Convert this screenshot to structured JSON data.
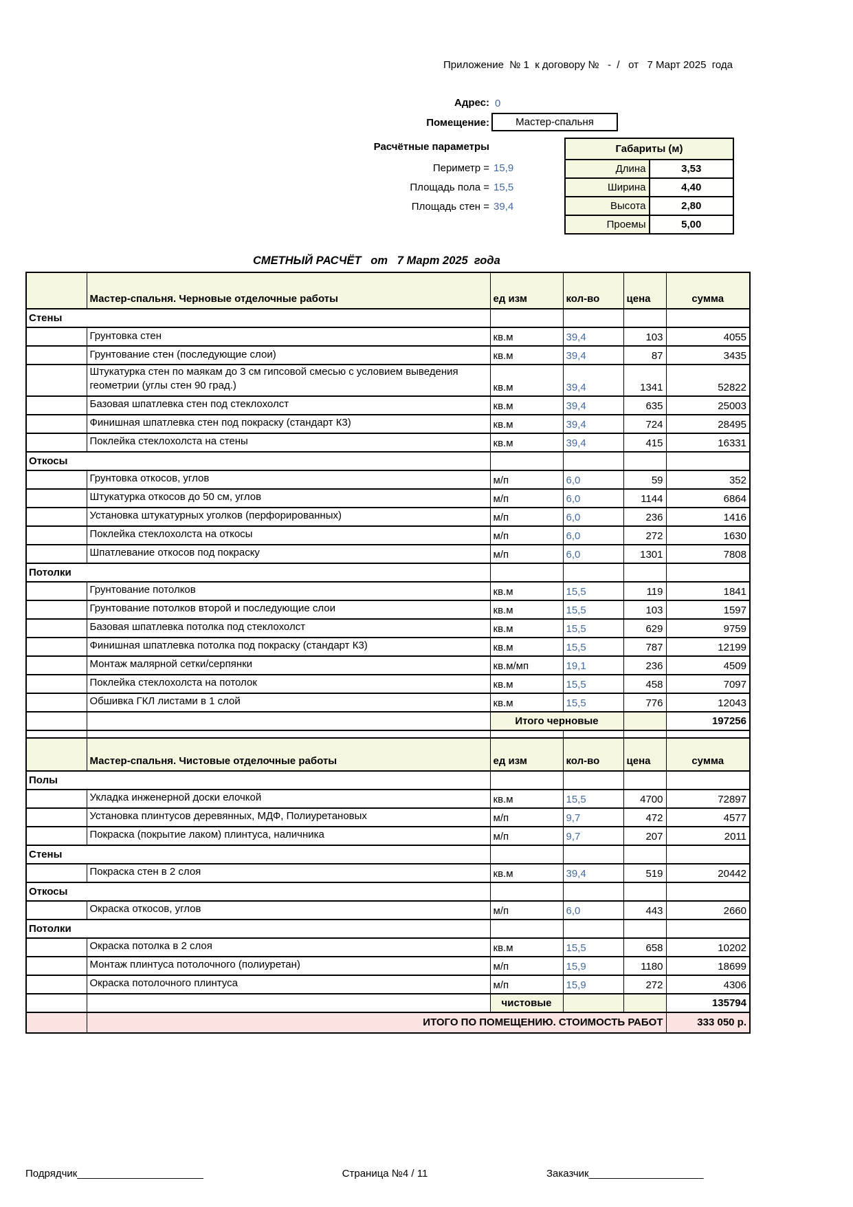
{
  "page": {
    "appendix_line": "Приложение  № 1  к договору №   -  /   от   7 Март 2025  года",
    "address_label": "Адрес:",
    "address_value": "0",
    "room_label": "Помещение:",
    "room_value": "Мастер-спальня",
    "params_title": "Расчётные параметры",
    "params": [
      {
        "label": "Периметр =",
        "value": "15,9"
      },
      {
        "label": "Площадь пола =",
        "value": "15,5"
      },
      {
        "label": "Площадь стен =",
        "value": "39,4"
      }
    ],
    "dimensions": {
      "title": "Габариты (м)",
      "rows": [
        {
          "label": "Длина",
          "value": "3,53"
        },
        {
          "label": "Ширина",
          "value": "4,40"
        },
        {
          "label": "Высота",
          "value": "2,80"
        },
        {
          "label": "Проемы",
          "value": "5,00"
        }
      ]
    },
    "estimate_title": "СМЕТНЫЙ РАСЧЁТ   от   7 Март 2025  года",
    "footer": {
      "contractor": "Подрядчик______________________",
      "page": "Страница №4 / 11",
      "customer": "Заказчик____________________"
    }
  },
  "table": {
    "columns": [
      "ед изм",
      "кол-во",
      "цена",
      "сумма"
    ],
    "accent_colors": {
      "header_bg": "#f7f7e1",
      "total_bg": "#f7f7e1",
      "grand_total_bg": "#fae3e1",
      "qty_text": "#44699e"
    },
    "blocks": [
      {
        "title": "Мастер-спальня. Черновые отделочные работы",
        "sections": [
          {
            "name": "Стены",
            "rows": [
              {
                "desc": "Грунтовка стен",
                "unit": "кв.м",
                "qty": "39,4",
                "price": "103",
                "sum": "4055"
              },
              {
                "desc": "Грунтование стен (последующие слои)",
                "unit": "кв.м",
                "qty": "39,4",
                "price": "87",
                "sum": "3435"
              },
              {
                "desc": "Штукатурка стен  по маякам до 3 см гипсовой смесью с условием выведения геометрии (углы стен 90 град.)",
                "unit": "кв.м",
                "qty": "39,4",
                "price": "1341",
                "sum": "52822"
              },
              {
                "desc": "Базовая шпатлевка стен под стеклохолст",
                "unit": "кв.м",
                "qty": "39,4",
                "price": "635",
                "sum": "25003"
              },
              {
                "desc": "Финишная шпатлевка стен под покраску (стандарт К3)",
                "unit": "кв.м",
                "qty": "39,4",
                "price": "724",
                "sum": "28495"
              },
              {
                "desc": "Поклейка стеклохолста на стены",
                "unit": "кв.м",
                "qty": "39,4",
                "price": "415",
                "sum": "16331"
              }
            ]
          },
          {
            "name": "Откосы",
            "rows": [
              {
                "desc": "Грунтовка откосов, углов",
                "unit": "м/п",
                "qty": "6,0",
                "price": "59",
                "sum": "352"
              },
              {
                "desc": "Штукатурка откосов до 50 см, углов",
                "unit": "м/п",
                "qty": "6,0",
                "price": "1144",
                "sum": "6864"
              },
              {
                "desc": "Установка штукатурных уголков (перфорированных)",
                "unit": "м/п",
                "qty": "6,0",
                "price": "236",
                "sum": "1416"
              },
              {
                "desc": "Поклейка стеклохолста на откосы",
                "unit": "м/п",
                "qty": "6,0",
                "price": "272",
                "sum": "1630"
              },
              {
                "desc": "Шпатлевание откосов под покраску",
                "unit": "м/п",
                "qty": "6,0",
                "price": "1301",
                "sum": "7808"
              }
            ]
          },
          {
            "name": "Потолки",
            "rows": [
              {
                "desc": "Грунтование потолков",
                "unit": "кв.м",
                "qty": "15,5",
                "price": "119",
                "sum": "1841"
              },
              {
                "desc": "Грунтование потолков  второй и последующие слои",
                "unit": "кв.м",
                "qty": "15,5",
                "price": "103",
                "sum": "1597"
              },
              {
                "desc": "Базовая шпатлевка потолка под стеклохолст",
                "unit": "кв.м",
                "qty": "15,5",
                "price": "629",
                "sum": "9759"
              },
              {
                "desc": "Финишная шпатлевка потолка под покраску (стандарт К3)",
                "unit": "кв.м",
                "qty": "15,5",
                "price": "787",
                "sum": "12199"
              },
              {
                "desc": "Монтаж малярной сетки/серпянки",
                "unit": "кв.м/мп",
                "qty": "19,1",
                "price": "236",
                "sum": "4509"
              },
              {
                "desc": "Поклейка стеклохолста на потолок",
                "unit": "кв.м",
                "qty": "15,5",
                "price": "458",
                "sum": "7097"
              },
              {
                "desc": "Обшивка  ГКЛ листами в 1 слой",
                "unit": "кв.м",
                "qty": "15,5",
                "price": "776",
                "sum": "12043"
              }
            ]
          }
        ],
        "total_label": "Итого черновые",
        "total_value": "197256"
      },
      {
        "title": "Мастер-спальня. Чистовые отделочные работы",
        "sections": [
          {
            "name": "Полы",
            "rows": [
              {
                "desc": "Укладка инженерной доски елочкой",
                "unit": "кв.м",
                "qty": "15,5",
                "price": "4700",
                "sum": "72897"
              },
              {
                "desc": "Установка плинтусов деревянных, МДФ, Полиуретановых",
                "unit": "м/п",
                "qty": "9,7",
                "price": "472",
                "sum": "4577"
              },
              {
                "desc": "Покраска (покрытие лаком) плинтуса, наличника",
                "unit": "м/п",
                "qty": "9,7",
                "price": "207",
                "sum": "2011"
              }
            ]
          },
          {
            "name": "Стены",
            "rows": [
              {
                "desc": "Покраска стен в 2 слоя",
                "unit": "кв.м",
                "qty": "39,4",
                "price": "519",
                "sum": "20442"
              }
            ]
          },
          {
            "name": "Откосы",
            "rows": [
              {
                "desc": "Окраска откосов, углов",
                "unit": "м/п",
                "qty": "6,0",
                "price": "443",
                "sum": "2660"
              }
            ]
          },
          {
            "name": "Потолки",
            "rows": [
              {
                "desc": "Окраска потолка в 2 слоя",
                "unit": "кв.м",
                "qty": "15,5",
                "price": "658",
                "sum": "10202"
              },
              {
                "desc": "Монтаж плинтуса потолочного (полиуретан)",
                "unit": "м/п",
                "qty": "15,9",
                "price": "1180",
                "sum": "18699"
              },
              {
                "desc": "Окраска потолочного плинтуса",
                "unit": "м/п",
                "qty": "15,9",
                "price": "272",
                "sum": "4306"
              }
            ]
          }
        ],
        "total_label": "чистовые",
        "total_value": "135794"
      }
    ],
    "grand_total_label": "ИТОГО ПО ПОМЕЩЕНИЮ. СТОИМОСТЬ РАБОТ",
    "grand_total_value": "333 050 р."
  }
}
